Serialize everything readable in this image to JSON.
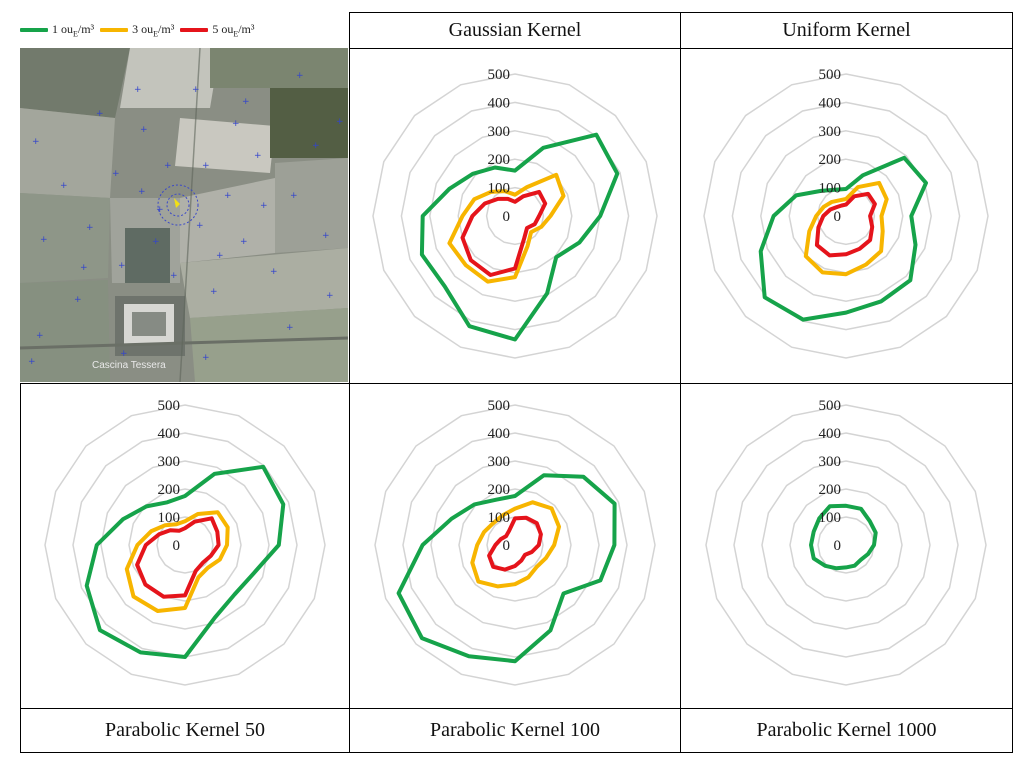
{
  "legend": [
    {
      "label": "1 ouE/m³",
      "color": "#16a34a"
    },
    {
      "label": "3 ouE/m³",
      "color": "#f7b500"
    },
    {
      "label": "5 ouE/m³",
      "color": "#e5141b"
    }
  ],
  "map": {
    "label": "Cascina Tessera"
  },
  "colors": {
    "grid": "#d4d4d4",
    "border": "#000000"
  },
  "chart_data": [
    {
      "type": "radar",
      "title": "Gaussian Kernel",
      "rmax": 500,
      "ticks": [
        0,
        100,
        200,
        300,
        400,
        500
      ],
      "series": [
        {
          "name": "1 ouE/m³",
          "color": "#16a34a",
          "values": [
            160,
            260,
            405,
            390,
            300,
            245,
            205,
            295,
            435,
            420,
            350,
            355,
            325,
            250,
            210,
            185
          ]
        },
        {
          "name": "3 ouE/m³",
          "color": "#f7b500",
          "values": [
            75,
            110,
            205,
            185,
            125,
            100,
            80,
            115,
            215,
            250,
            245,
            250,
            185,
            155,
            120,
            95
          ]
        },
        {
          "name": "5 ouE/m³",
          "color": "#e5141b",
          "values": [
            50,
            75,
            120,
            115,
            85,
            75,
            60,
            85,
            185,
            225,
            220,
            200,
            150,
            115,
            85,
            65
          ]
        }
      ]
    },
    {
      "type": "radar",
      "title": "Uniform Kernel",
      "rmax": 500,
      "ticks": [
        0,
        100,
        200,
        300,
        400,
        500
      ],
      "series": [
        {
          "name": "1 ouE/m³",
          "color": "#16a34a",
          "values": [
            95,
            155,
            290,
            305,
            230,
            265,
            320,
            325,
            340,
            395,
            405,
            325,
            255,
            190,
            125,
            100
          ]
        },
        {
          "name": "3 ouE/m³",
          "color": "#f7b500",
          "values": [
            60,
            110,
            165,
            155,
            125,
            140,
            175,
            185,
            205,
            215,
            200,
            140,
            105,
            85,
            70,
            60
          ]
        },
        {
          "name": "5 ouE/m³",
          "color": "#e5141b",
          "values": [
            40,
            75,
            110,
            110,
            85,
            100,
            120,
            125,
            135,
            150,
            145,
            105,
            80,
            60,
            45,
            40
          ]
        }
      ]
    },
    {
      "type": "radar",
      "title": "",
      "rmax": 500,
      "ticks": [
        0,
        100,
        200,
        300,
        400,
        500
      ],
      "series": [
        {
          "name": "1 ouE/m³",
          "color": "#16a34a",
          "values": [
            175,
            275,
            395,
            380,
            335,
            265,
            250,
            280,
            400,
            415,
            430,
            380,
            315,
            240,
            195,
            165
          ]
        },
        {
          "name": "3 ouE/m³",
          "color": "#f7b500",
          "values": [
            85,
            120,
            165,
            165,
            150,
            135,
            115,
            125,
            225,
            255,
            260,
            225,
            170,
            130,
            100,
            80
          ]
        },
        {
          "name": "5 ouE/m³",
          "color": "#e5141b",
          "values": [
            60,
            90,
            135,
            125,
            120,
            100,
            90,
            100,
            180,
            200,
            200,
            185,
            140,
            100,
            75,
            55
          ]
        }
      ]
    },
    {
      "type": "radar",
      "title": "",
      "rmax": 500,
      "ticks": [
        0,
        100,
        200,
        300,
        400,
        500
      ],
      "series": [
        {
          "name": "1 ouE/m³",
          "color": "#16a34a",
          "values": [
            175,
            270,
            345,
            385,
            355,
            330,
            245,
            330,
            415,
            430,
            470,
            450,
            330,
            245,
            205,
            175
          ]
        },
        {
          "name": "3 ouE/m³",
          "color": "#f7b500",
          "values": [
            130,
            165,
            185,
            170,
            140,
            120,
            110,
            125,
            140,
            160,
            185,
            165,
            135,
            120,
            110,
            115
          ]
        },
        {
          "name": "5 ouE/m³",
          "color": "#e5141b",
          "values": [
            95,
            105,
            110,
            100,
            85,
            65,
            50,
            60,
            75,
            95,
            110,
            100,
            70,
            55,
            45,
            55
          ]
        }
      ]
    },
    {
      "type": "radar",
      "title": "",
      "rmax": 500,
      "ticks": [
        0,
        100,
        200,
        300,
        400,
        500
      ],
      "series": [
        {
          "name": "1 ouE/m³",
          "color": "#16a34a",
          "values": [
            140,
            140,
            120,
            115,
            100,
            85,
            75,
            80,
            80,
            90,
            105,
            125,
            125,
            125,
            135,
            150
          ]
        }
      ]
    }
  ],
  "labels": {
    "bottom": [
      "Parabolic Kernel 50",
      "Parabolic Kernel 100",
      "Parabolic Kernel 1000"
    ]
  }
}
